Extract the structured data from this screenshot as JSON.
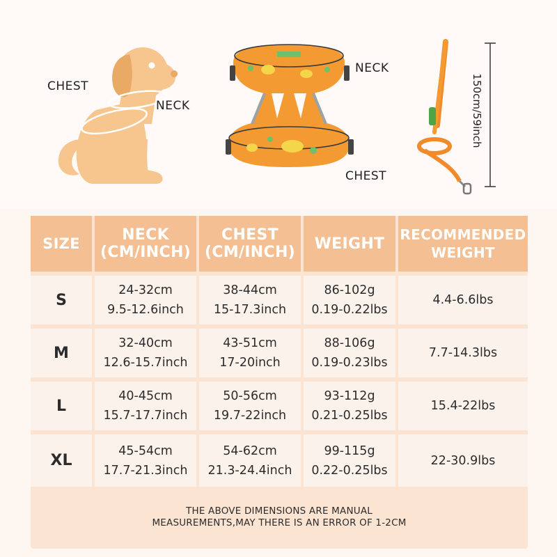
{
  "illustration": {
    "dog_chest_label": "CHEST",
    "dog_neck_label": "NECK",
    "harness_neck_label": "NECK",
    "harness_chest_label": "CHEST",
    "leash_length_label": "150cm/59inch",
    "colors": {
      "dog": "#f7c58e",
      "harness": "#f39a32",
      "leash": "#f08a2a"
    }
  },
  "table": {
    "headers": {
      "size": "SIZE",
      "neck_1": "NECK",
      "neck_2": "(CM/INCH)",
      "chest_1": "CHEST",
      "chest_2": "(CM/INCH)",
      "weight": "WEIGHT",
      "rec_1": "RECOMMENDED",
      "rec_2": "WEIGHT"
    },
    "rows": [
      {
        "size": "S",
        "neck_cm": "24-32cm",
        "neck_in": "9.5-12.6inch",
        "chest_cm": "38-44cm",
        "chest_in": "15-17.3inch",
        "weight_g": "86-102g",
        "weight_lbs": "0.19-0.22lbs",
        "recommended": "4.4-6.6lbs"
      },
      {
        "size": "M",
        "neck_cm": "32-40cm",
        "neck_in": "12.6-15.7inch",
        "chest_cm": "43-51cm",
        "chest_in": "17-20inch",
        "weight_g": "88-106g",
        "weight_lbs": "0.19-0.23lbs",
        "recommended": "7.7-14.3lbs"
      },
      {
        "size": "L",
        "neck_cm": "40-45cm",
        "neck_in": "15.7-17.7inch",
        "chest_cm": "50-56cm",
        "chest_in": "19.7-22inch",
        "weight_g": "93-112g",
        "weight_lbs": "0.21-0.25lbs",
        "recommended": "15.4-22lbs"
      },
      {
        "size": "XL",
        "neck_cm": "45-54cm",
        "neck_in": "17.7-21.3inch",
        "chest_cm": "54-62cm",
        "chest_in": "21.3-24.4inch",
        "weight_g": "99-115g",
        "weight_lbs": "0.22-0.25lbs",
        "recommended": "22-30.9lbs"
      }
    ],
    "note_line_1": "THE ABOVE DIMENSIONS ARE MANUAL",
    "note_line_2": "MEASUREMENTS,MAY THERE IS AN ERROR OF 1-2CM"
  }
}
